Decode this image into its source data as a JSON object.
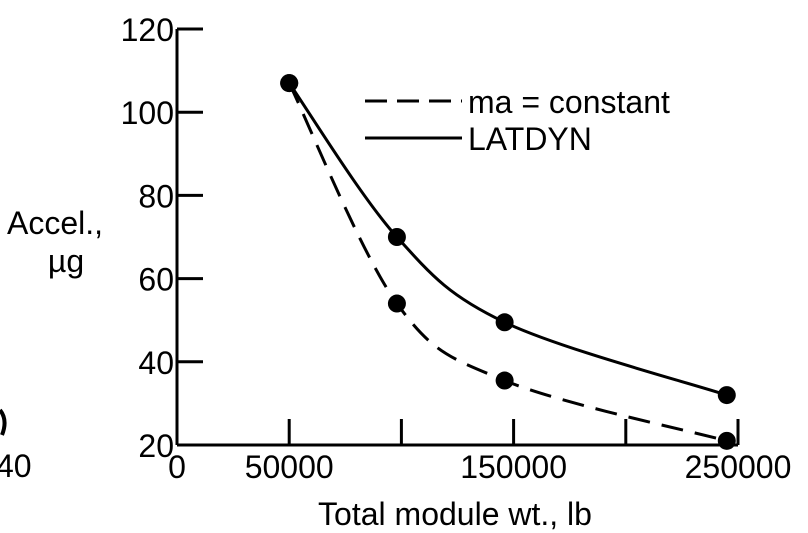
{
  "chart_data": {
    "type": "line",
    "xlabel": "Total module wt., lb",
    "ylabel_lines": [
      "Accel.,",
      "µg"
    ],
    "xlim": [
      0,
      250000
    ],
    "ylim": [
      20,
      120
    ],
    "x_ticks": [
      0,
      50000,
      100000,
      150000,
      200000,
      250000
    ],
    "x_tick_labels": [
      "0",
      "50000",
      "",
      "150000",
      "",
      "250000"
    ],
    "y_ticks": [
      20,
      40,
      60,
      80,
      100,
      120
    ],
    "y_tick_labels": [
      "20",
      "40",
      "60",
      "80",
      "100",
      "120"
    ],
    "grid": false,
    "legend_position": "top-right",
    "series": [
      {
        "name": "ma = constant",
        "line_style": "dashed",
        "x": [
          50000,
          98000,
          146000,
          245000
        ],
        "y": [
          107,
          54,
          35.5,
          21
        ]
      },
      {
        "name": "LATDYN",
        "line_style": "solid",
        "x": [
          50000,
          98000,
          146000,
          245000
        ],
        "y": [
          107,
          70,
          49.5,
          32
        ]
      }
    ],
    "edge_fragments": [
      "40"
    ]
  }
}
